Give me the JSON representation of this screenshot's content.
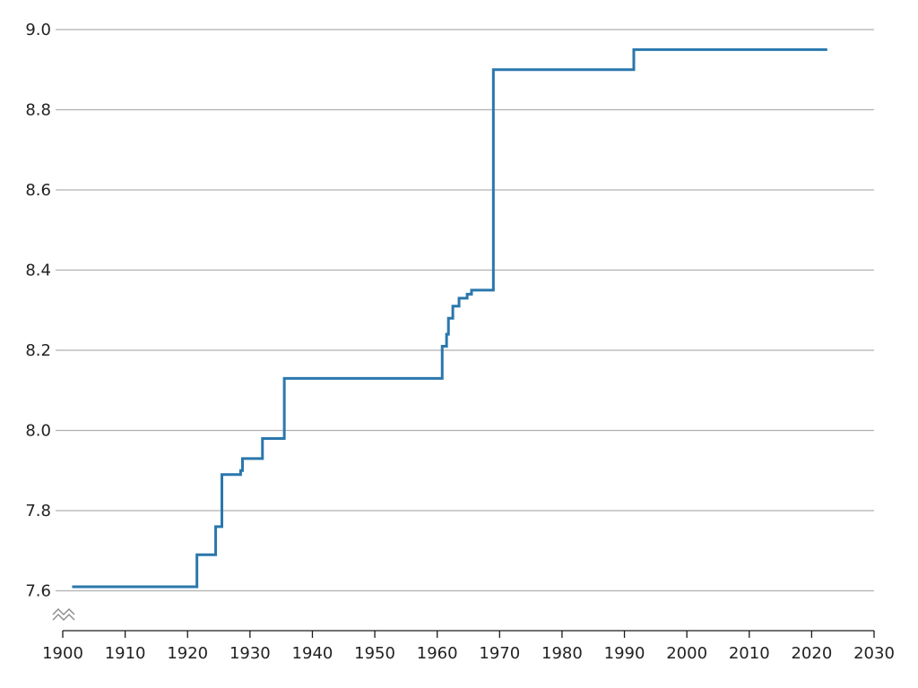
{
  "chart_data": {
    "type": "line",
    "title": "",
    "xlabel": "",
    "ylabel": "",
    "xlim": [
      1900,
      2030
    ],
    "ylim": [
      7.5,
      9.0
    ],
    "y_axis_break": true,
    "grid": "horizontal",
    "x_ticks": [
      "1900",
      "1910",
      "1920",
      "1930",
      "1940",
      "1950",
      "1960",
      "1970",
      "1980",
      "1990",
      "2000",
      "2010",
      "2020",
      "2030"
    ],
    "y_ticks": [
      "7.6",
      "7.8",
      "8.0",
      "8.2",
      "8.4",
      "8.6",
      "8.8",
      "9.0"
    ],
    "line_color": "#2a77ad",
    "step": "post",
    "series": [
      {
        "x": [
          1901.5,
          1921.5,
          1924.5,
          1925.5,
          1928.5,
          1928.8,
          1932.0,
          1935.5,
          1960.8,
          1961.5,
          1961.8,
          1962.5,
          1963.5,
          1964.8,
          1965.5,
          1969.0,
          1991.5,
          2022.5
        ],
        "y": [
          7.61,
          7.69,
          7.76,
          7.89,
          7.9,
          7.93,
          7.98,
          8.13,
          8.21,
          8.24,
          8.28,
          8.31,
          8.33,
          8.34,
          8.35,
          8.9,
          8.95,
          8.95
        ]
      }
    ]
  }
}
